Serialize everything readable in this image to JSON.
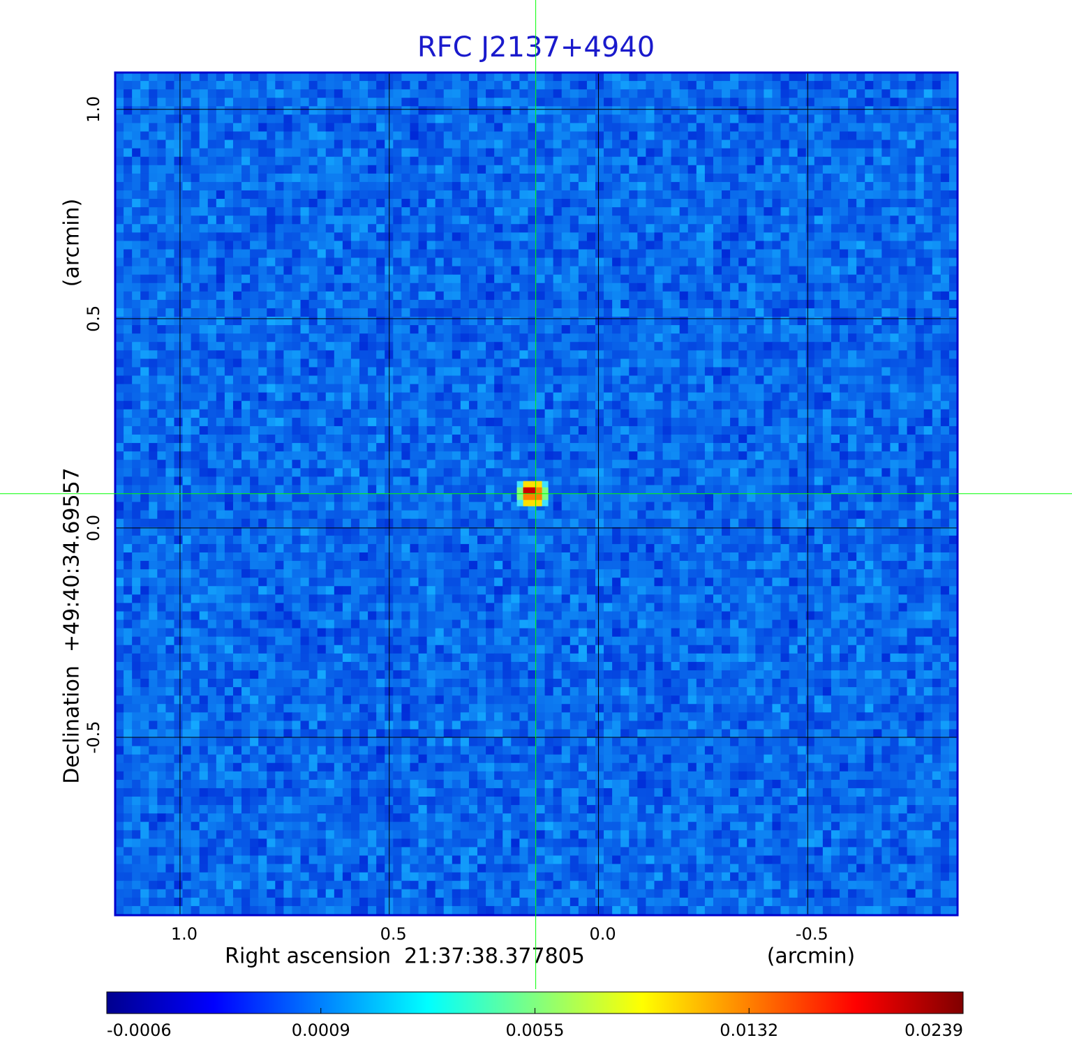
{
  "chart_data": {
    "type": "image",
    "title": "RFC J2137+4940",
    "x_label": "Right ascension  21:37:38.377805",
    "x_unit": "(arcmin)",
    "y_label": "Declination  +49:40:34.69557",
    "y_unit": "(arcmin)",
    "xlim": [
      1.155,
      -0.858
    ],
    "ylim": [
      -0.925,
      1.088
    ],
    "xticks": [
      {
        "value": 1.0,
        "label": "1.0"
      },
      {
        "value": 0.5,
        "label": "0.5"
      },
      {
        "value": 0.0,
        "label": "0.0"
      },
      {
        "value": -0.5,
        "label": "-0.5"
      }
    ],
    "yticks": [
      {
        "value": 1.0,
        "label": "1.0"
      },
      {
        "value": 0.5,
        "label": "0.5"
      },
      {
        "value": 0.0,
        "label": "0.0"
      },
      {
        "value": -0.5,
        "label": "-0.5"
      }
    ],
    "grid": true,
    "crosshair": {
      "x": 0.15,
      "y": 0.082,
      "color": "#00ff00"
    },
    "colorbar": {
      "ticks": [
        -0.0006,
        0.0009,
        0.0055,
        0.0132,
        0.0239
      ],
      "colormap": [
        "#00008f",
        "#0000ff",
        "#0080ff",
        "#00ffff",
        "#80ff80",
        "#ffff00",
        "#ff8000",
        "#ff0000",
        "#800000"
      ]
    }
  }
}
